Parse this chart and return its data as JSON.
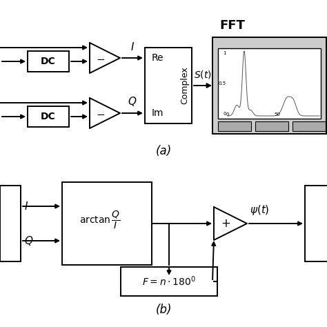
{
  "bg_color": "#ffffff",
  "fg_color": "#000000",
  "label_a": "(a)",
  "label_b": "(b)",
  "title_fft": "FFT"
}
